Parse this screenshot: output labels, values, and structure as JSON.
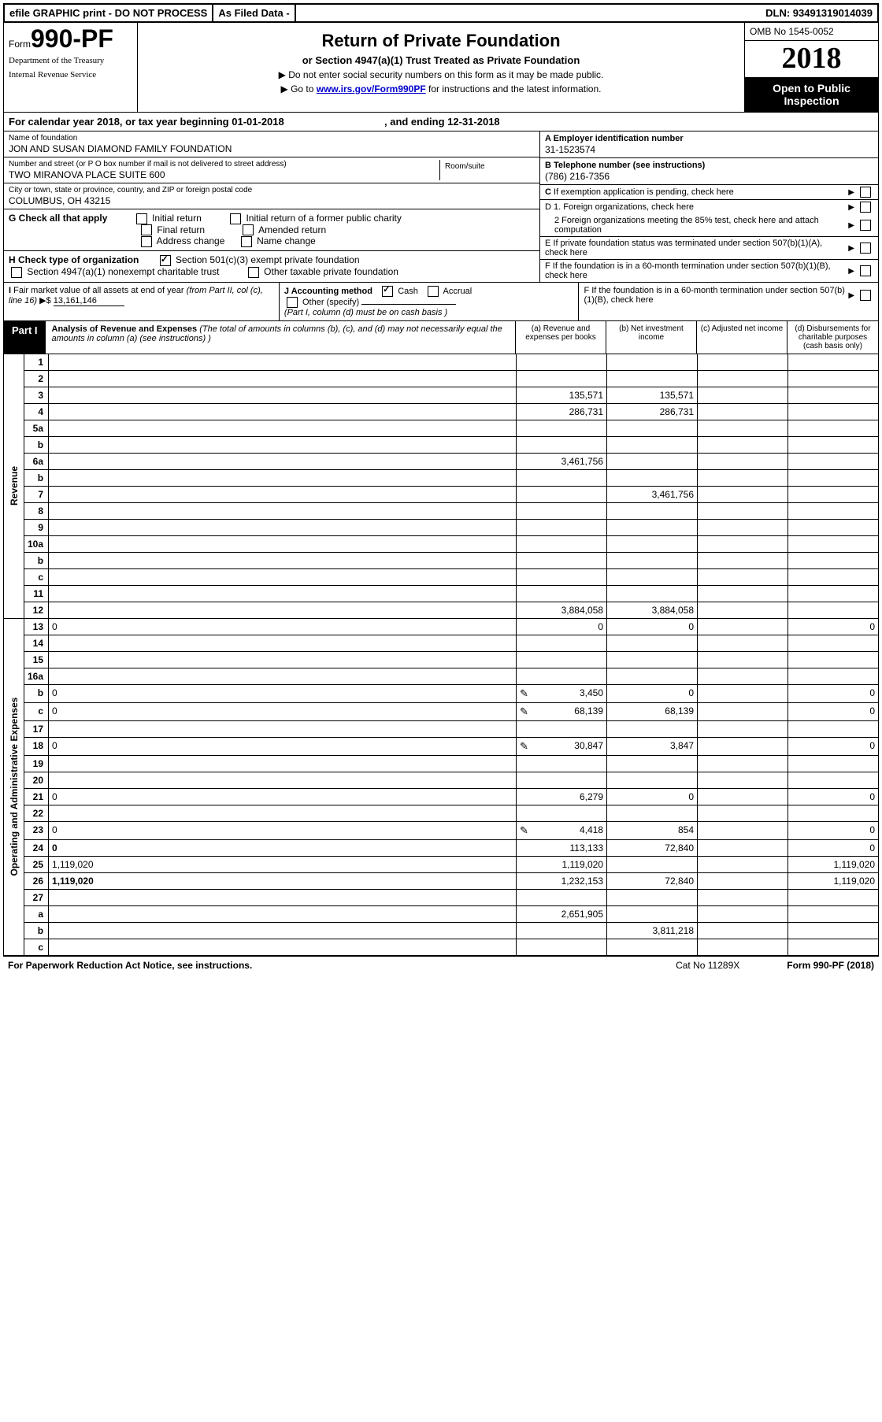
{
  "topbar": {
    "efile": "efile GRAPHIC print - DO NOT PROCESS",
    "asfiled": "As Filed Data -",
    "dln": "DLN: 93491319014039"
  },
  "header": {
    "form_word": "Form",
    "form_no": "990-PF",
    "dept1": "Department of the Treasury",
    "dept2": "Internal Revenue Service",
    "title": "Return of Private Foundation",
    "sub": "or Section 4947(a)(1) Trust Treated as Private Foundation",
    "warn": "▶ Do not enter social security numbers on this form as it may be made public.",
    "goto_pre": "▶ Go to ",
    "goto_link": "www.irs.gov/Form990PF",
    "goto_post": " for instructions and the latest information.",
    "omb": "OMB No 1545-0052",
    "year": "2018",
    "open": "Open to Public Inspection"
  },
  "cal": {
    "pre": "For calendar year 2018, or tax year beginning ",
    "start": "01-01-2018",
    "mid": ", and ending ",
    "end": "12-31-2018"
  },
  "id": {
    "name_lbl": "Name of foundation",
    "name": "JON AND SUSAN DIAMOND FAMILY FOUNDATION",
    "addr_lbl": "Number and street (or P O  box number if mail is not delivered to street address)",
    "addr": "TWO MIRANOVA PLACE SUITE 600",
    "room_lbl": "Room/suite",
    "city_lbl": "City or town, state or province, country, and ZIP or foreign postal code",
    "city": "COLUMBUS, OH  43215",
    "a_lbl": "A Employer identification number",
    "a_val": "31-1523574",
    "b_lbl": "B Telephone number (see instructions)",
    "b_val": "(786) 216-7356",
    "c_lbl": "C If exemption application is pending, check here"
  },
  "g": {
    "lbl": "G Check all that apply",
    "o1": "Initial return",
    "o2": "Initial return of a former public charity",
    "o3": "Final return",
    "o4": "Amended return",
    "o5": "Address change",
    "o6": "Name change"
  },
  "h": {
    "lbl": "H Check type of organization",
    "o1": "Section 501(c)(3) exempt private foundation",
    "o2": "Section 4947(a)(1) nonexempt charitable trust",
    "o3": "Other taxable private foundation"
  },
  "d": {
    "d1": "D 1. Foreign organizations, check here",
    "d2": "2  Foreign organizations meeting the 85% test, check here and attach computation"
  },
  "e": "E  If private foundation status was terminated under section 507(b)(1)(A), check here",
  "f": "F  If the foundation is in a 60-month termination under section 507(b)(1)(B), check here",
  "i": {
    "lbl": "I Fair market value of all assets at end of year (from Part II, col  (c), line 16) ▶$ ",
    "val": "13,161,146"
  },
  "j": {
    "lbl": "J Accounting method",
    "cash": "Cash",
    "accr": "Accrual",
    "oth": "Other (specify)",
    "note": "(Part I, column (d) must be on cash basis )"
  },
  "part": {
    "tag": "Part I",
    "title": "Analysis of Revenue and Expenses",
    "note": " (The total of amounts in columns (b), (c), and (d) may not necessarily equal the amounts in column (a) (see instructions) )",
    "ca": "(a)  Revenue and expenses per books",
    "cb": "(b)  Net investment income",
    "cc": "(c)  Adjusted net income",
    "cd": "(d)  Disbursements for charitable purposes (cash basis only)"
  },
  "sides": {
    "rev": "Revenue",
    "exp": "Operating and Administrative Expenses"
  },
  "rows": [
    {
      "n": "1",
      "d": "",
      "a": "",
      "b": "",
      "c": ""
    },
    {
      "n": "2",
      "d": "",
      "a": "",
      "b": "",
      "c": ""
    },
    {
      "n": "3",
      "d": "",
      "a": "135,571",
      "b": "135,571",
      "c": ""
    },
    {
      "n": "4",
      "d": "",
      "a": "286,731",
      "b": "286,731",
      "c": ""
    },
    {
      "n": "5a",
      "d": "",
      "a": "",
      "b": "",
      "c": ""
    },
    {
      "n": "b",
      "d": "",
      "a": "",
      "b": "",
      "c": ""
    },
    {
      "n": "6a",
      "d": "",
      "a": "3,461,756",
      "b": "",
      "c": ""
    },
    {
      "n": "b",
      "d": "",
      "a": "",
      "b": "",
      "c": ""
    },
    {
      "n": "7",
      "d": "",
      "a": "",
      "b": "3,461,756",
      "c": ""
    },
    {
      "n": "8",
      "d": "",
      "a": "",
      "b": "",
      "c": ""
    },
    {
      "n": "9",
      "d": "",
      "a": "",
      "b": "",
      "c": ""
    },
    {
      "n": "10a",
      "d": "",
      "a": "",
      "b": "",
      "c": ""
    },
    {
      "n": "b",
      "d": "",
      "a": "",
      "b": "",
      "c": ""
    },
    {
      "n": "c",
      "d": "",
      "a": "",
      "b": "",
      "c": ""
    },
    {
      "n": "11",
      "d": "",
      "a": "",
      "b": "",
      "c": ""
    },
    {
      "n": "12",
      "d": "",
      "a": "3,884,058",
      "b": "3,884,058",
      "c": "",
      "bold": true
    },
    {
      "n": "13",
      "d": "0",
      "a": "0",
      "b": "0",
      "c": ""
    },
    {
      "n": "14",
      "d": "",
      "a": "",
      "b": "",
      "c": ""
    },
    {
      "n": "15",
      "d": "",
      "a": "",
      "b": "",
      "c": ""
    },
    {
      "n": "16a",
      "d": "",
      "a": "",
      "b": "",
      "c": ""
    },
    {
      "n": "b",
      "d": "0",
      "a": "3,450",
      "b": "0",
      "c": "",
      "icon": true
    },
    {
      "n": "c",
      "d": "0",
      "a": "68,139",
      "b": "68,139",
      "c": "",
      "icon": true
    },
    {
      "n": "17",
      "d": "",
      "a": "",
      "b": "",
      "c": ""
    },
    {
      "n": "18",
      "d": "0",
      "a": "30,847",
      "b": "3,847",
      "c": "",
      "icon": true
    },
    {
      "n": "19",
      "d": "",
      "a": "",
      "b": "",
      "c": ""
    },
    {
      "n": "20",
      "d": "",
      "a": "",
      "b": "",
      "c": ""
    },
    {
      "n": "21",
      "d": "0",
      "a": "6,279",
      "b": "0",
      "c": ""
    },
    {
      "n": "22",
      "d": "",
      "a": "",
      "b": "",
      "c": ""
    },
    {
      "n": "23",
      "d": "0",
      "a": "4,418",
      "b": "854",
      "c": "",
      "icon": true
    },
    {
      "n": "24",
      "d": "0",
      "a": "113,133",
      "b": "72,840",
      "c": "",
      "bold": true
    },
    {
      "n": "25",
      "d": "1,119,020",
      "a": "1,119,020",
      "b": "",
      "c": ""
    },
    {
      "n": "26",
      "d": "1,119,020",
      "a": "1,232,153",
      "b": "72,840",
      "c": "",
      "bold": true
    },
    {
      "n": "27",
      "d": "",
      "a": "",
      "b": "",
      "c": ""
    },
    {
      "n": "a",
      "d": "",
      "a": "2,651,905",
      "b": "",
      "c": "",
      "bold": true
    },
    {
      "n": "b",
      "d": "",
      "a": "",
      "b": "3,811,218",
      "c": "",
      "bold": true
    },
    {
      "n": "c",
      "d": "",
      "a": "",
      "b": "",
      "c": "",
      "bold": true
    }
  ],
  "footer": {
    "l": "For Paperwork Reduction Act Notice, see instructions.",
    "m": "Cat No  11289X",
    "r": "Form 990-PF (2018)"
  }
}
